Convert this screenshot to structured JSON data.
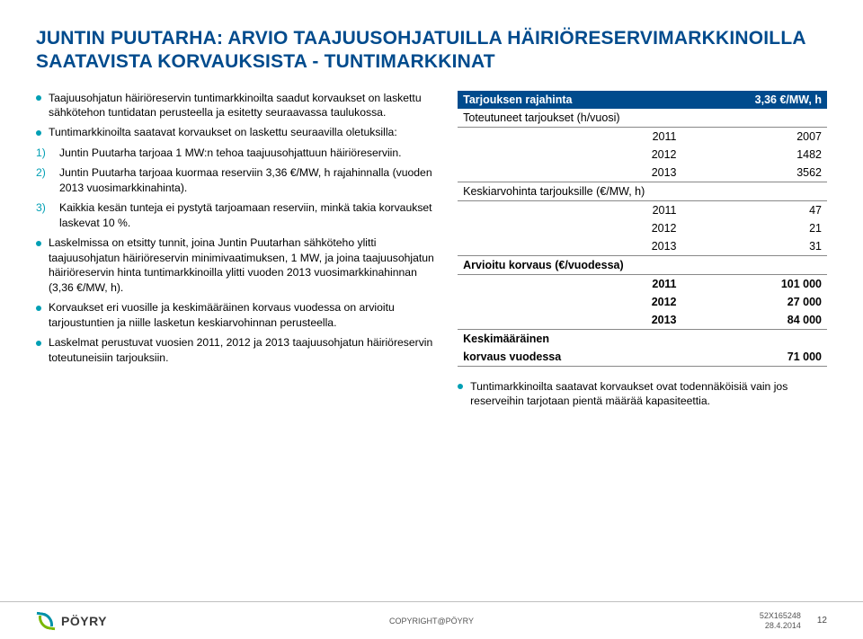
{
  "title": "JUNTIN PUUTARHA: ARVIO TAAJUUSOHJATUILLA HÄIRIÖRESERVIMARKKINOILLA SAATAVISTA KORVAUKSISTA - TUNTIMARKKINAT",
  "left": {
    "b1": "Taajuusohjatun häiriöreservin tuntimarkkinoilta saadut korvaukset on laskettu sähkötehon tuntidatan perusteella ja esitetty seuraavassa taulukossa.",
    "b2": "Tuntimarkkinoilta saatavat korvaukset on laskettu seuraavilla oletuksilla:",
    "n1": "Juntin Puutarha tarjoaa 1 MW:n tehoa taajuusohjattuun häiriöreserviin.",
    "n2": "Juntin Puutarha tarjoaa kuormaa reserviin 3,36 €/MW, h rajahinnalla (vuoden 2013 vuosimarkkinahinta).",
    "n3": "Kaikkia kesän tunteja ei pystytä tarjoamaan reserviin, minkä takia korvaukset laskevat 10 %.",
    "b3": "Laskelmissa on etsitty tunnit, joina Juntin Puutarhan sähköteho ylitti taajuusohjatun häiriöreservin minimivaatimuksen, 1 MW, ja joina taajuusohjatun häiriöreservin hinta tuntimarkkinoilla ylitti vuoden 2013 vuosimarkkinahinnan (3,36 €/MW, h).",
    "b4": "Korvaukset eri vuosille ja keskimääräinen korvaus vuodessa on arvioitu tarjoustuntien ja niille lasketun keskiarvohinnan perusteella.",
    "b5": "Laskelmat perustuvat vuosien 2011, 2012 ja 2013 taajuusohjatun häiriöreservin toteutuneisiin tarjouksiin."
  },
  "table": {
    "header_label": "Tarjouksen rajahinta",
    "header_value": "3,36 €/MW, h",
    "s1_label": "Toteutuneet tarjoukset (h/vuosi)",
    "s1_rows": [
      {
        "y": "2011",
        "v": "2007"
      },
      {
        "y": "2012",
        "v": "1482"
      },
      {
        "y": "2013",
        "v": "3562"
      }
    ],
    "s2_label": "Keskiarvohinta tarjouksille (€/MW, h)",
    "s2_rows": [
      {
        "y": "2011",
        "v": "47"
      },
      {
        "y": "2012",
        "v": "21"
      },
      {
        "y": "2013",
        "v": "31"
      }
    ],
    "s3_label": "Arvioitu korvaus (€/vuodessa)",
    "s3_rows": [
      {
        "y": "2011",
        "v": "101 000"
      },
      {
        "y": "2012",
        "v": "27 000"
      },
      {
        "y": "2013",
        "v": "84 000"
      }
    ],
    "avg_label_1": "Keskimääräinen",
    "avg_label_2": "korvaus vuodessa",
    "avg_value": "71 000"
  },
  "right_note": "Tuntimarkkinoilta saatavat korvaukset ovat todennäköisiä vain jos reserveihin tarjotaan pientä määrää kapasiteettia.",
  "footer": {
    "logo_text": "PÖYRY",
    "copyright": "COPYRIGHT@PÖYRY",
    "docnum": "52X165248",
    "date": "28.4.2014",
    "page": "12"
  },
  "colors": {
    "brand_blue": "#004b8d",
    "accent_teal": "#009fb4"
  }
}
